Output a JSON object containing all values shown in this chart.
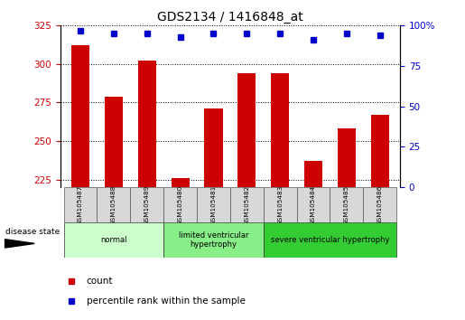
{
  "title": "GDS2134 / 1416848_at",
  "samples": [
    "GSM105487",
    "GSM105488",
    "GSM105489",
    "GSM105480",
    "GSM105481",
    "GSM105482",
    "GSM105483",
    "GSM105484",
    "GSM105485",
    "GSM105486"
  ],
  "counts": [
    312,
    279,
    302,
    226,
    271,
    294,
    294,
    237,
    258,
    267
  ],
  "percentiles": [
    97,
    95,
    95,
    93,
    95,
    95,
    95,
    91,
    95,
    94
  ],
  "ylim_left": [
    220,
    325
  ],
  "ylim_right": [
    0,
    100
  ],
  "yticks_left": [
    225,
    250,
    275,
    300,
    325
  ],
  "yticks_right": [
    0,
    25,
    50,
    75,
    100
  ],
  "groups": [
    {
      "label": "normal",
      "start": 0,
      "end": 3,
      "color": "#ccffcc"
    },
    {
      "label": "limited ventricular\nhypertrophy",
      "start": 3,
      "end": 6,
      "color": "#88ee88"
    },
    {
      "label": "severe ventricular hypertrophy",
      "start": 6,
      "end": 10,
      "color": "#33cc33"
    }
  ],
  "bar_color": "#cc0000",
  "dot_color": "#0000cc",
  "bar_width": 0.55,
  "grid_color": "#000000",
  "tick_label_color_left": "#cc0000",
  "tick_label_color_right": "#0000cc",
  "legend_items": [
    "count",
    "percentile rank within the sample"
  ],
  "disease_state_label": "disease state",
  "sample_box_color": "#d8d8d8",
  "right_ytick_labels": [
    "0",
    "25",
    "50",
    "75",
    "100%"
  ]
}
